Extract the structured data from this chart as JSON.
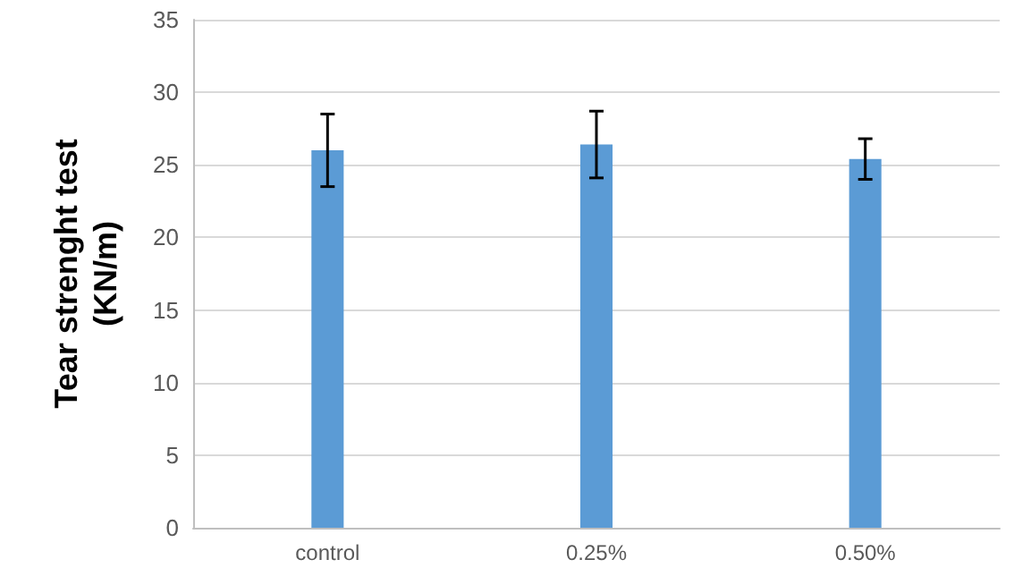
{
  "chart_data": {
    "type": "bar",
    "ylabel": "Tear strenght test\n(KN/m)",
    "categories": [
      "control",
      "0.25%",
      "0.50%"
    ],
    "values": [
      26,
      26.4,
      25.4
    ],
    "errors": [
      2.5,
      2.3,
      1.4
    ],
    "colors": [
      "#5b9bd5",
      "#5b9bd5",
      "#5b9bd5"
    ],
    "ylim": [
      0,
      35
    ],
    "yticks": [
      0,
      5,
      10,
      15,
      20,
      25,
      30,
      35
    ],
    "grid": "y"
  }
}
